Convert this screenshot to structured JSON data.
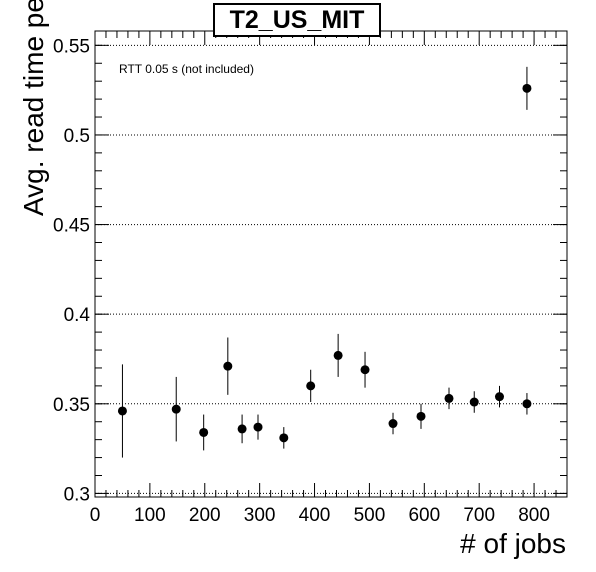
{
  "chart_data": {
    "type": "scatter",
    "title": "T2_US_MIT",
    "xlabel": "# of jobs",
    "ylabel": "Avg. read time per block [s]",
    "annotation": "RTT 0.05 s (not included)",
    "xlim": [
      0,
      860
    ],
    "ylim": [
      0.298,
      0.558
    ],
    "xticks": [
      0,
      100,
      200,
      300,
      400,
      500,
      600,
      700,
      800
    ],
    "yticks": [
      0.3,
      0.35,
      0.4,
      0.45,
      0.5,
      0.55
    ],
    "ytick_labels": [
      "0.3",
      "0.35",
      "0.4",
      "0.45",
      "0.5",
      "0.55"
    ],
    "grid": "horizontal dotted",
    "points": [
      {
        "x": 50,
        "y": 0.346,
        "err": 0.026
      },
      {
        "x": 148,
        "y": 0.347,
        "err": 0.018
      },
      {
        "x": 198,
        "y": 0.334,
        "err": 0.01
      },
      {
        "x": 242,
        "y": 0.371,
        "err": 0.016
      },
      {
        "x": 268,
        "y": 0.336,
        "err": 0.008
      },
      {
        "x": 297,
        "y": 0.337,
        "err": 0.007
      },
      {
        "x": 344,
        "y": 0.331,
        "err": 0.006
      },
      {
        "x": 393,
        "y": 0.36,
        "err": 0.009
      },
      {
        "x": 443,
        "y": 0.377,
        "err": 0.012
      },
      {
        "x": 492,
        "y": 0.369,
        "err": 0.01
      },
      {
        "x": 543,
        "y": 0.339,
        "err": 0.006
      },
      {
        "x": 594,
        "y": 0.343,
        "err": 0.007
      },
      {
        "x": 645,
        "y": 0.353,
        "err": 0.006
      },
      {
        "x": 691,
        "y": 0.351,
        "err": 0.006
      },
      {
        "x": 737,
        "y": 0.354,
        "err": 0.006
      },
      {
        "x": 787,
        "y": 0.35,
        "err": 0.006
      },
      {
        "x": 787,
        "y": 0.526,
        "err": 0.012
      }
    ]
  }
}
